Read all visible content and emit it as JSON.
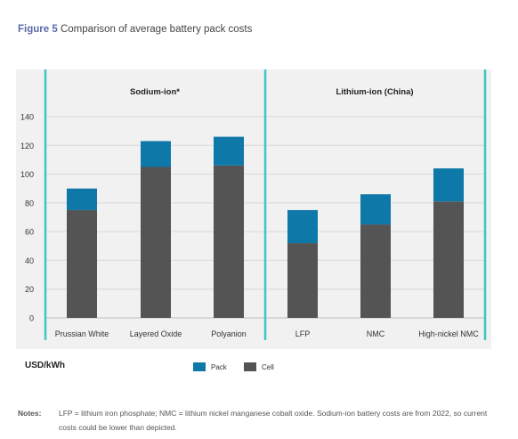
{
  "figure": {
    "number": "Figure 5",
    "title": "Comparison of average battery pack costs"
  },
  "units_label": "USD/kWh",
  "legend": {
    "pack": "Pack",
    "cell": "Cell"
  },
  "colors": {
    "pack": "#0e78a8",
    "cell": "#545454",
    "divider": "#3ec7c0",
    "grid": "#d8d8d8",
    "background": "#f1f1f1"
  },
  "notes": {
    "label": "Notes:",
    "text": "LFP = lithium iron phosphate; NMC = lithium nickel manganese cobalt oxide. Sodium-ion battery costs are from 2022, so current costs could be lower than depicted."
  },
  "chart_data": {
    "type": "bar",
    "stacked": true,
    "groups": [
      {
        "title": "Sodium-ion*",
        "categories": [
          "Prussian White",
          "Layered Oxide",
          "Polyanion"
        ]
      },
      {
        "title": "Lithium-ion (China)",
        "categories": [
          "LFP",
          "NMC",
          "High-nickel NMC"
        ]
      }
    ],
    "categories": [
      "Prussian White",
      "Layered Oxide",
      "Polyanion",
      "LFP",
      "NMC",
      "High-nickel NMC"
    ],
    "series": [
      {
        "name": "Cell",
        "values": [
          75,
          105,
          106,
          52,
          65,
          81
        ]
      },
      {
        "name": "Pack",
        "values": [
          15,
          18,
          20,
          23,
          21,
          23
        ]
      }
    ],
    "ylabel": "USD/kWh",
    "ylim": [
      0,
      140
    ],
    "yticks": [
      0,
      20,
      40,
      60,
      80,
      100,
      120,
      140
    ],
    "grid": true,
    "legend_position": "bottom"
  }
}
